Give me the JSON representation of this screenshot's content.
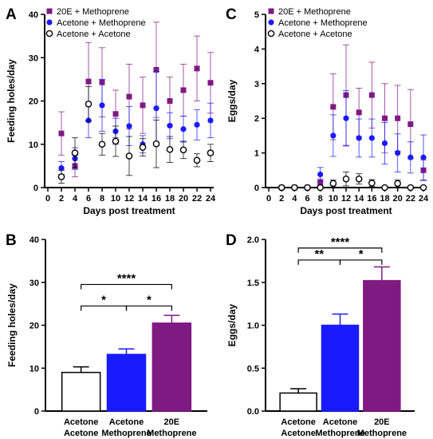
{
  "chart_data": [
    {
      "panel": "A",
      "type": "scatter",
      "xlabel": "Days post treatment",
      "ylabel": "Feeding holes/day",
      "xlim": [
        0,
        24
      ],
      "ylim": [
        0,
        40
      ],
      "xticks": [
        0,
        2,
        4,
        6,
        8,
        10,
        12,
        14,
        16,
        18,
        20,
        22,
        24
      ],
      "yticks": [
        0,
        10,
        20,
        30,
        40
      ],
      "legend_position": "top-left",
      "series": [
        {
          "name": "20E + Methoprene",
          "color": "#7f1a82",
          "marker": "square",
          "x": [
            2,
            4,
            6,
            8,
            10,
            12,
            14,
            16,
            18,
            20,
            22,
            24
          ],
          "y": [
            12.5,
            5.0,
            24.5,
            24.3,
            17.0,
            21.0,
            19.0,
            27.2,
            20.0,
            22.5,
            27.5,
            24.2
          ],
          "err": [
            5.0,
            2.5,
            9.0,
            8.0,
            5.5,
            7.5,
            6.5,
            11.0,
            5.5,
            6.0,
            7.5,
            7.0
          ]
        },
        {
          "name": "Acetone + Methoprene",
          "color": "#1a1aff",
          "marker": "circle",
          "x": [
            2,
            4,
            6,
            8,
            10,
            12,
            14,
            16,
            18,
            20,
            22,
            24
          ],
          "y": [
            4.5,
            6.7,
            15.5,
            19.0,
            13.0,
            14.2,
            10.0,
            18.3,
            14.3,
            13.5,
            14.5,
            15.5
          ],
          "err": [
            1.5,
            2.5,
            4.0,
            6.0,
            3.0,
            4.5,
            2.0,
            8.5,
            3.0,
            3.0,
            3.5,
            4.0
          ]
        },
        {
          "name": "Acetone + Acetone",
          "color": "#000000",
          "marker": "open-circle",
          "x": [
            2,
            4,
            6,
            8,
            10,
            12,
            14,
            16,
            18,
            20,
            22,
            24
          ],
          "y": [
            2.5,
            8.0,
            19.3,
            10.0,
            10.7,
            7.3,
            9.3,
            10.1,
            8.8,
            8.7,
            6.3,
            8.0
          ],
          "err": [
            1.5,
            3.5,
            4.0,
            2.5,
            3.5,
            4.5,
            2.0,
            5.5,
            3.0,
            2.0,
            1.5,
            2.0
          ]
        }
      ]
    },
    {
      "panel": "C",
      "type": "scatter",
      "xlabel": "Days post treatment",
      "ylabel": "Eggs/day",
      "xlim": [
        0,
        24
      ],
      "ylim": [
        0,
        5
      ],
      "xticks": [
        0,
        2,
        4,
        6,
        8,
        10,
        12,
        14,
        16,
        18,
        20,
        22,
        24
      ],
      "yticks": [
        0,
        1,
        2,
        3,
        4,
        5
      ],
      "legend_position": "top-left",
      "series": [
        {
          "name": "20E + Methoprene",
          "color": "#7f1a82",
          "marker": "square",
          "x": [
            2,
            4,
            6,
            8,
            10,
            12,
            14,
            16,
            18,
            20,
            22,
            24
          ],
          "y": [
            0,
            0,
            0,
            0.15,
            2.33,
            2.67,
            2.17,
            2.67,
            2.0,
            2.0,
            1.83,
            0.5
          ],
          "err": [
            0,
            0,
            0,
            0.1,
            0.95,
            1.45,
            0.7,
            0.95,
            1.0,
            0.95,
            1.0,
            0.3
          ]
        },
        {
          "name": "Acetone + Methoprene",
          "color": "#1a1aff",
          "marker": "circle",
          "x": [
            2,
            4,
            6,
            8,
            10,
            12,
            14,
            16,
            18,
            20,
            22,
            24
          ],
          "y": [
            0,
            0,
            0,
            0.38,
            1.5,
            2.0,
            1.43,
            1.43,
            1.28,
            1.0,
            0.87,
            0.87
          ],
          "err": [
            0,
            0,
            0,
            0.2,
            0.6,
            0.8,
            0.55,
            0.55,
            0.6,
            0.55,
            0.45,
            0.65
          ]
        },
        {
          "name": "Acetone + Acetone",
          "color": "#000000",
          "marker": "open-circle",
          "x": [
            2,
            4,
            6,
            8,
            10,
            12,
            14,
            16,
            18,
            20,
            22,
            24
          ],
          "y": [
            0,
            0,
            0,
            0.0,
            0.12,
            0.25,
            0.25,
            0.13,
            0.0,
            0.12,
            0.0,
            0.0
          ],
          "err": [
            0,
            0,
            0,
            0,
            0.1,
            0.2,
            0.15,
            0.1,
            0,
            0.1,
            0,
            0
          ]
        }
      ]
    },
    {
      "panel": "B",
      "type": "bar",
      "ylabel": "Feeding holes/day",
      "ylim": [
        0,
        40
      ],
      "yticks": [
        0,
        10,
        20,
        30,
        40
      ],
      "categories": [
        [
          "Acetone",
          "Acetone"
        ],
        [
          "Acetone",
          "Methoprene"
        ],
        [
          "20E",
          "Methoprene"
        ]
      ],
      "values": [
        9.0,
        13.2,
        20.5
      ],
      "err": [
        1.3,
        1.3,
        1.8
      ],
      "colors": [
        "#ffffff",
        "#1a1aff",
        "#7f1a82"
      ],
      "significance": [
        {
          "from": 0,
          "to": 1,
          "label": "*",
          "y": 24.5
        },
        {
          "from": 1,
          "to": 2,
          "label": "*",
          "y": 24.5
        },
        {
          "from": 0,
          "to": 2,
          "label": "****",
          "y": 29.5
        }
      ]
    },
    {
      "panel": "D",
      "type": "bar",
      "ylabel": "Eggs/day",
      "ylim": [
        0,
        2.0
      ],
      "yticks": [
        "0.0",
        "0.5",
        "1.0",
        "1.5",
        "2.0"
      ],
      "categories": [
        [
          "Acetone",
          "Acetone"
        ],
        [
          "Acetone",
          "Methoprene"
        ],
        [
          "20E",
          "Methoprene"
        ]
      ],
      "values": [
        0.21,
        1.0,
        1.52
      ],
      "err": [
        0.05,
        0.13,
        0.16
      ],
      "colors": [
        "#ffffff",
        "#1a1aff",
        "#7f1a82"
      ],
      "significance": [
        {
          "from": 0,
          "to": 1,
          "label": "**",
          "y": 1.76
        },
        {
          "from": 1,
          "to": 2,
          "label": "*",
          "y": 1.76
        },
        {
          "from": 0,
          "to": 2,
          "label": "****",
          "y": 1.9
        }
      ]
    }
  ]
}
